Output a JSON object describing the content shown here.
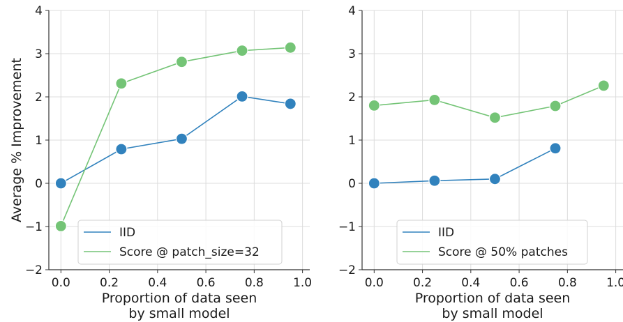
{
  "chart_data": [
    {
      "type": "line",
      "xlabel_lines": [
        "Proportion of data seen",
        "by small model"
      ],
      "ylabel": "Average % Improvement",
      "xlim": [
        -0.05,
        1.03
      ],
      "ylim": [
        -2,
        4
      ],
      "xticks": [
        "0.0",
        "0.2",
        "0.4",
        "0.6",
        "0.8",
        "1.0"
      ],
      "yticks": [
        "−2",
        "−1",
        "0",
        "1",
        "2",
        "3",
        "4"
      ],
      "grid": true,
      "legend_position": "lower right",
      "series": [
        {
          "name": "IID",
          "color": "#3182bd",
          "x": [
            0.0,
            0.25,
            0.5,
            0.75,
            0.95
          ],
          "y": [
            0.0,
            0.79,
            1.03,
            2.01,
            1.84
          ]
        },
        {
          "name": "Score @ patch_size=32",
          "color": "#74c476",
          "x": [
            0.0,
            0.25,
            0.5,
            0.75,
            0.95
          ],
          "y": [
            -0.99,
            2.31,
            2.81,
            3.07,
            3.14
          ]
        }
      ]
    },
    {
      "type": "line",
      "xlabel_lines": [
        "Proportion of data seen",
        "by small model"
      ],
      "ylabel": "",
      "xlim": [
        -0.05,
        1.03
      ],
      "ylim": [
        -2,
        4
      ],
      "xticks": [
        "0.0",
        "0.2",
        "0.4",
        "0.6",
        "0.8",
        "1.0"
      ],
      "yticks": [
        "−2",
        "−1",
        "0",
        "1",
        "2",
        "3",
        "4"
      ],
      "grid": true,
      "legend_position": "lower right",
      "series": [
        {
          "name": "IID",
          "color": "#3182bd",
          "x": [
            0.0,
            0.25,
            0.5,
            0.75
          ],
          "y": [
            0.0,
            0.06,
            0.1,
            0.81
          ]
        },
        {
          "name": "Score @ 50% patches",
          "color": "#74c476",
          "x": [
            0.0,
            0.25,
            0.5,
            0.75,
            0.95
          ],
          "y": [
            1.8,
            1.93,
            1.52,
            1.79,
            2.26
          ]
        }
      ]
    }
  ]
}
